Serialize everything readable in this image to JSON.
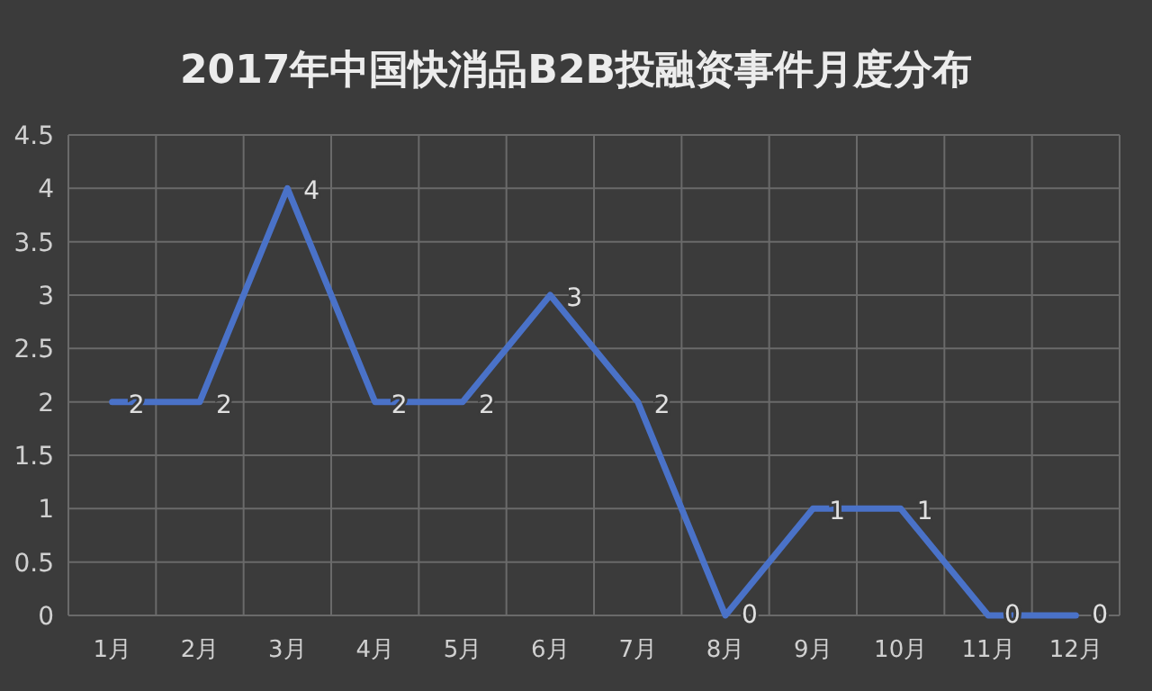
{
  "chart_data": {
    "type": "line",
    "title": "2017年中国快消品B2B投融资事件月度分布",
    "categories": [
      "1月",
      "2月",
      "3月",
      "4月",
      "5月",
      "6月",
      "7月",
      "8月",
      "9月",
      "10月",
      "11月",
      "12月"
    ],
    "values": [
      2,
      2,
      4,
      2,
      2,
      3,
      2,
      0,
      1,
      1,
      0,
      0
    ],
    "color": "#4a72c8",
    "ylim": [
      0,
      4.5
    ],
    "yticks": [
      0,
      0.5,
      1,
      1.5,
      2,
      2.5,
      3,
      3.5,
      4,
      4.5
    ],
    "grid": true,
    "data_labels": true
  }
}
